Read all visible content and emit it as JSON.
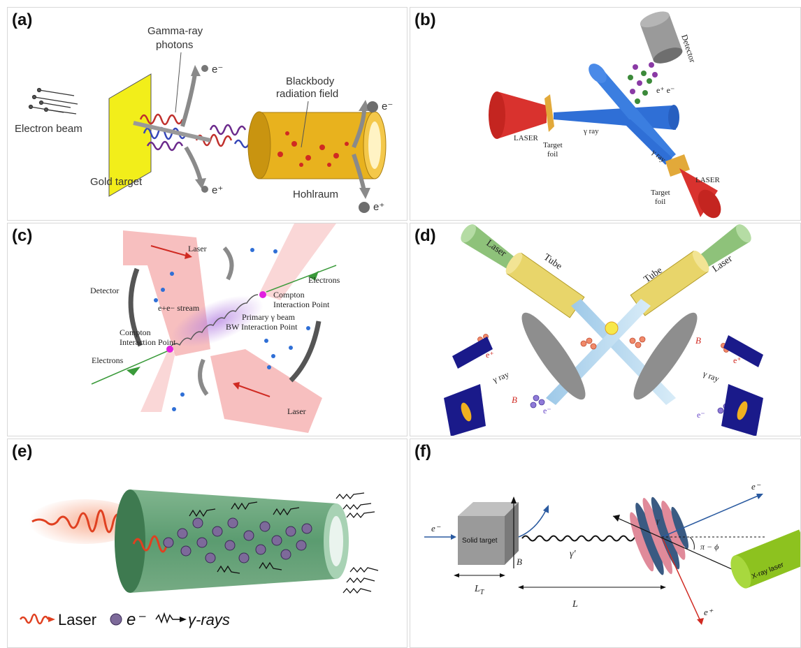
{
  "panels": [
    {
      "id": "a",
      "tag": "(a)",
      "labels": {
        "electron_beam": "Electron beam",
        "gold_target": "Gold target",
        "gamma_line1": "Gamma-ray",
        "gamma_line2": "photons",
        "blackbody_line1": "Blackbody",
        "blackbody_line2": "radiation field",
        "hohlraum": "Hohlraum",
        "e_minus_top": "e⁻",
        "e_plus_bottom": "e⁺",
        "e_minus_right": "e⁻",
        "e_plus_right": "e⁺"
      }
    },
    {
      "id": "b",
      "tag": "(b)",
      "labels": {
        "detector": "Detector",
        "pairs": "e⁺ e⁻",
        "laser_left": "LASER",
        "target_left_1": "Target",
        "target_left_2": "foil",
        "gamma_1": "γ ray",
        "gamma_2": "γ ray",
        "laser_right": "LASER",
        "target_right_1": "Target",
        "target_right_2": "foil"
      }
    },
    {
      "id": "c",
      "tag": "(c)",
      "labels": {
        "laser_top": "Laser",
        "laser_bottom": "Laser",
        "detector": "Detector",
        "stream": "e+e− stream",
        "electrons_left": "Electrons",
        "electrons_right": "Electrons",
        "compton_right_1": "Compton",
        "compton_right_2": "Interaction Point",
        "compton_left_1": "Compton",
        "compton_left_2": "Interaction Point",
        "primary": "Primary γ beam",
        "bw": "BW Interaction Point"
      }
    },
    {
      "id": "d",
      "tag": "(d)",
      "labels": {
        "laser_left": "Laser",
        "laser_right": "Laser",
        "tube_left": "Tube",
        "tube_right": "Tube",
        "e_plus_left": "e⁺",
        "gamma_left": "γ ray",
        "b_left": "B",
        "e_minus_left": "e⁻",
        "b_right": "B",
        "e_plus_right": "e⁺",
        "gamma_right": "γ ray",
        "e_minus_right": "e⁻"
      }
    },
    {
      "id": "e",
      "tag": "(e)",
      "legend": {
        "laser": "Laser",
        "electron": "e⁻",
        "gamma": "γ-rays"
      }
    },
    {
      "id": "f",
      "tag": "(f)",
      "labels": {
        "e_minus_in": "e⁻",
        "solid_target": "Solid target",
        "b_field": "B",
        "gamma_prime": "γ′",
        "lt": "L",
        "lt_sub": "T",
        "l": "L",
        "e_minus_out": "e⁻",
        "angle": "π − ϕ",
        "gamma_small": "γ",
        "xray_laser": "X-ray laser",
        "e_plus_out": "e⁺"
      }
    }
  ],
  "colors": {
    "laser_red": "#e23b3b",
    "gamma_blue": "#2f6fd6",
    "gold": "#e8b21e",
    "target_yellow": "#f2ee1a",
    "tube_green": "#3e8a57",
    "xray_green": "#8dc21f"
  }
}
